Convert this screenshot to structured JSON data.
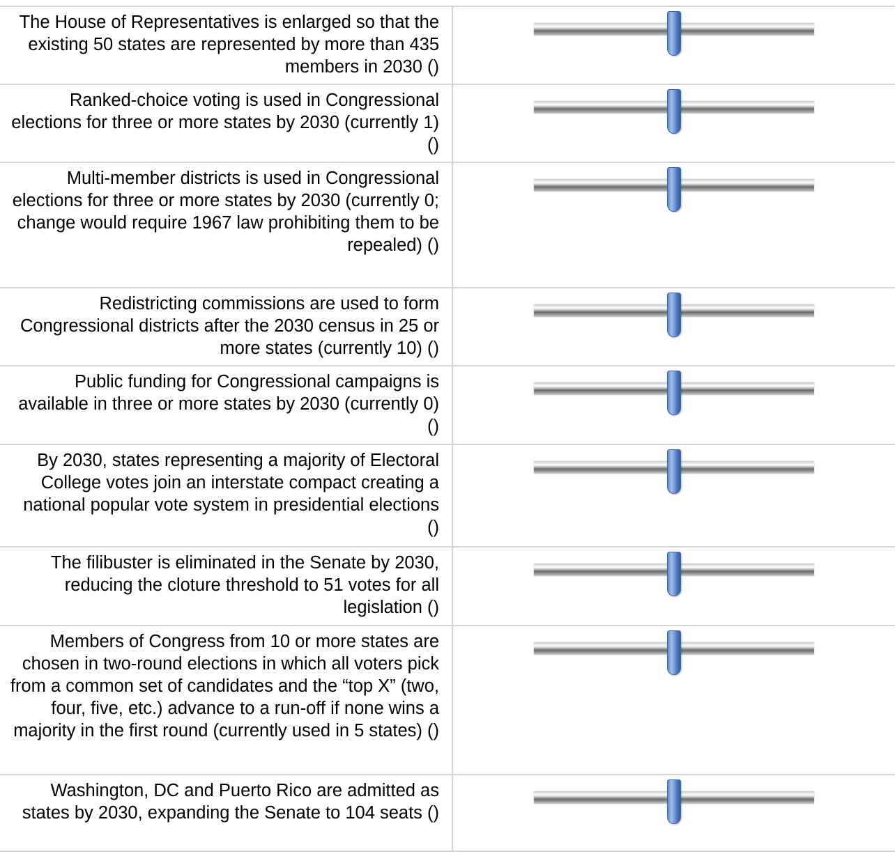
{
  "survey": {
    "items": [
      {
        "label": "The House of Representatives is enlarged so that the existing 50 states are represented by more than 435 members in 2030 ()",
        "value": 0.5
      },
      {
        "label": "Ranked-choice voting is used in Congressional elections for three or more states by 2030 (currently 1) ()",
        "value": 0.5
      },
      {
        "label": "Multi-member districts is used in Congressional elections for three or more states by 2030 (currently 0; change would require 1967 law prohibiting them to be repealed) ()",
        "value": 0.5
      },
      {
        "label": "Redistricting commissions are used to form Congressional districts after the 2030 census in 25 or more states (currently 10) ()",
        "value": 0.5
      },
      {
        "label": "Public funding for Congressional campaigns is available in three or more states by 2030 (currently 0) ()",
        "value": 0.5
      },
      {
        "label": "By 2030, states representing a majority of Electoral College votes join an interstate compact creating a national popular vote system in presidential elections ()",
        "value": 0.5
      },
      {
        "label": "The filibuster is eliminated in the Senate by 2030, reducing the cloture threshold to 51 votes for all legislation ()",
        "value": 0.5
      },
      {
        "label": "Members of Congress from 10 or more states are chosen in two-round elections in which all voters pick from a common set of candidates and the “top X” (two, four, five, etc.) advance to a run-off if none wins a majority in the first round (currently used in 5 states) ()",
        "value": 0.5
      },
      {
        "label": "Washington, DC and Puerto Rico are admitted as states by 2030, expanding the Senate to 104 seats ()",
        "value": 0.5
      }
    ],
    "colors": {
      "handle": "#4f79bf",
      "track": "#8a8a8a",
      "grid": "#d4d4d4"
    }
  }
}
